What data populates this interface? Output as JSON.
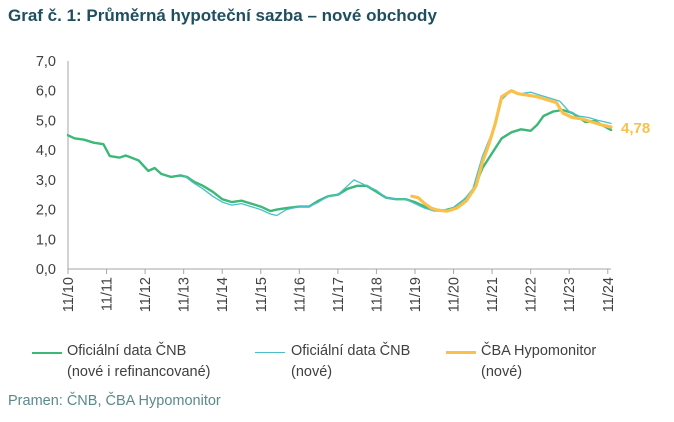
{
  "title": "Graf č. 1: Průměrná hypoteční sazba – nové obchody",
  "source": "Pramen: ČNB, ČBA Hypomonitor",
  "chart_data": {
    "type": "line",
    "ylim": [
      0,
      7
    ],
    "yticks": [
      "0,0",
      "1,0",
      "2,0",
      "3,0",
      "4,0",
      "5,0",
      "6,0",
      "7,0"
    ],
    "xlim": [
      2010.833,
      2024.917
    ],
    "xticks": [
      "11/10",
      "11/11",
      "11/12",
      "11/13",
      "11/14",
      "11/15",
      "11/16",
      "11/17",
      "11/18",
      "11/19",
      "11/20",
      "11/21",
      "11/22",
      "11/23",
      "11/24"
    ],
    "end_label": "4,78",
    "series": [
      {
        "name": "Oficiální data ČNB (nové i refinancované)",
        "color": "#3cb878",
        "width": 2.4,
        "points": [
          [
            2010.833,
            4.5
          ],
          [
            2011.0,
            4.4
          ],
          [
            2011.25,
            4.35
          ],
          [
            2011.5,
            4.25
          ],
          [
            2011.75,
            4.2
          ],
          [
            2011.917,
            3.8
          ],
          [
            2012.167,
            3.75
          ],
          [
            2012.333,
            3.82
          ],
          [
            2012.667,
            3.65
          ],
          [
            2012.917,
            3.3
          ],
          [
            2013.083,
            3.4
          ],
          [
            2013.25,
            3.2
          ],
          [
            2013.5,
            3.1
          ],
          [
            2013.75,
            3.15
          ],
          [
            2013.917,
            3.1
          ],
          [
            2014.083,
            2.95
          ],
          [
            2014.333,
            2.8
          ],
          [
            2014.583,
            2.6
          ],
          [
            2014.833,
            2.35
          ],
          [
            2015.083,
            2.25
          ],
          [
            2015.333,
            2.3
          ],
          [
            2015.583,
            2.2
          ],
          [
            2015.833,
            2.1
          ],
          [
            2016.083,
            1.95
          ],
          [
            2016.25,
            2.0
          ],
          [
            2016.5,
            2.05
          ],
          [
            2016.833,
            2.1
          ],
          [
            2017.083,
            2.1
          ],
          [
            2017.333,
            2.3
          ],
          [
            2017.583,
            2.45
          ],
          [
            2017.833,
            2.5
          ],
          [
            2018.083,
            2.7
          ],
          [
            2018.333,
            2.8
          ],
          [
            2018.583,
            2.8
          ],
          [
            2018.833,
            2.6
          ],
          [
            2019.083,
            2.4
          ],
          [
            2019.333,
            2.35
          ],
          [
            2019.583,
            2.35
          ],
          [
            2019.833,
            2.25
          ],
          [
            2020.083,
            2.1
          ],
          [
            2020.333,
            2.0
          ],
          [
            2020.583,
            1.97
          ],
          [
            2020.833,
            2.05
          ],
          [
            2021.083,
            2.3
          ],
          [
            2021.333,
            2.6
          ],
          [
            2021.583,
            3.4
          ],
          [
            2021.833,
            3.9
          ],
          [
            2022.083,
            4.4
          ],
          [
            2022.333,
            4.6
          ],
          [
            2022.583,
            4.7
          ],
          [
            2022.833,
            4.65
          ],
          [
            2023.0,
            4.85
          ],
          [
            2023.167,
            5.15
          ],
          [
            2023.417,
            5.3
          ],
          [
            2023.667,
            5.35
          ],
          [
            2023.917,
            5.25
          ],
          [
            2024.083,
            5.1
          ],
          [
            2024.25,
            4.95
          ],
          [
            2024.5,
            4.98
          ],
          [
            2024.75,
            4.8
          ],
          [
            2024.917,
            4.68
          ]
        ]
      },
      {
        "name": "Oficiální data ČNB (nové)",
        "color": "#4bbfc8",
        "width": 1.3,
        "points": [
          [
            2013.833,
            3.15
          ],
          [
            2014.083,
            2.9
          ],
          [
            2014.333,
            2.7
          ],
          [
            2014.583,
            2.45
          ],
          [
            2014.833,
            2.25
          ],
          [
            2015.083,
            2.15
          ],
          [
            2015.333,
            2.2
          ],
          [
            2015.583,
            2.1
          ],
          [
            2015.833,
            2.0
          ],
          [
            2016.083,
            1.85
          ],
          [
            2016.25,
            1.8
          ],
          [
            2016.5,
            2.0
          ],
          [
            2016.833,
            2.1
          ],
          [
            2017.083,
            2.1
          ],
          [
            2017.333,
            2.25
          ],
          [
            2017.583,
            2.45
          ],
          [
            2017.833,
            2.5
          ],
          [
            2018.083,
            2.8
          ],
          [
            2018.25,
            3.0
          ],
          [
            2018.5,
            2.85
          ],
          [
            2018.833,
            2.65
          ],
          [
            2019.083,
            2.4
          ],
          [
            2019.333,
            2.35
          ],
          [
            2019.583,
            2.35
          ],
          [
            2019.833,
            2.2
          ],
          [
            2020.083,
            2.05
          ],
          [
            2020.333,
            1.95
          ],
          [
            2020.583,
            1.95
          ],
          [
            2020.833,
            2.05
          ],
          [
            2021.083,
            2.3
          ],
          [
            2021.333,
            2.7
          ],
          [
            2021.583,
            3.8
          ],
          [
            2021.833,
            4.6
          ],
          [
            2022.083,
            5.7
          ],
          [
            2022.333,
            6.0
          ],
          [
            2022.583,
            5.9
          ],
          [
            2022.833,
            5.95
          ],
          [
            2023.083,
            5.85
          ],
          [
            2023.333,
            5.75
          ],
          [
            2023.583,
            5.65
          ],
          [
            2023.833,
            5.3
          ],
          [
            2024.083,
            5.15
          ],
          [
            2024.333,
            5.1
          ],
          [
            2024.583,
            5.0
          ],
          [
            2024.917,
            4.9
          ]
        ]
      },
      {
        "name": "ČBA Hypomonitor (nové)",
        "color": "#f9c04b",
        "width": 3.2,
        "points": [
          [
            2019.75,
            2.45
          ],
          [
            2019.917,
            2.4
          ],
          [
            2020.083,
            2.2
          ],
          [
            2020.25,
            2.05
          ],
          [
            2020.417,
            1.98
          ],
          [
            2020.667,
            1.95
          ],
          [
            2020.917,
            2.05
          ],
          [
            2021.167,
            2.3
          ],
          [
            2021.417,
            2.8
          ],
          [
            2021.583,
            3.6
          ],
          [
            2021.75,
            4.2
          ],
          [
            2021.917,
            4.9
          ],
          [
            2022.083,
            5.8
          ],
          [
            2022.333,
            6.0
          ],
          [
            2022.5,
            5.9
          ],
          [
            2022.75,
            5.85
          ],
          [
            2023.0,
            5.8
          ],
          [
            2023.25,
            5.7
          ],
          [
            2023.5,
            5.6
          ],
          [
            2023.667,
            5.25
          ],
          [
            2023.917,
            5.1
          ],
          [
            2024.167,
            5.05
          ],
          [
            2024.417,
            4.95
          ],
          [
            2024.667,
            4.85
          ],
          [
            2024.917,
            4.78
          ]
        ]
      }
    ]
  },
  "legend": [
    {
      "line1": "Oficiální data ČNB",
      "line2": "(nové i refinancované)",
      "color": "#3cb878"
    },
    {
      "line1": "Oficiální data ČNB",
      "line2": "(nové)",
      "color": "#4bbfc8"
    },
    {
      "line1": "ČBA Hypomonitor",
      "line2": "(nové)",
      "color": "#f9c04b"
    }
  ]
}
